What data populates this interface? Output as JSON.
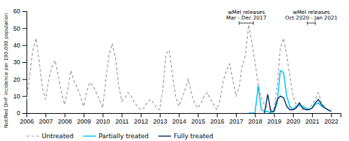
{
  "chart_data": {
    "type": "line",
    "ylabel": "Notified DHF incidence per 100,000 population",
    "xlim": [
      2006,
      2022.5
    ],
    "xticks": [
      2006,
      2007,
      2008,
      2009,
      2010,
      2011,
      2012,
      2013,
      2014,
      2015,
      2016,
      2017,
      2018,
      2019,
      2020,
      2021,
      2022
    ],
    "ylim": [
      0,
      60
    ],
    "yticks": [
      0,
      10,
      20,
      30,
      40,
      50,
      60
    ],
    "grid": false,
    "legend": "bottom",
    "annotations": [
      {
        "text": "wMel releases\nMar - Dec 2017",
        "x_start": 2017.17,
        "x_end": 2017.92,
        "y": 53,
        "y_text": 54.5
      },
      {
        "text": "wMel releases\nOct 2020 - Jan 2021",
        "x_start": 2020.75,
        "x_end": 2021.17,
        "y": 53,
        "y_text": 54.5
      }
    ],
    "series": [
      {
        "name": "Untreated",
        "color": "#999999",
        "line_style": "dashed",
        "x": [
          2006.0,
          2006.17,
          2006.33,
          2006.5,
          2006.67,
          2006.83,
          2007.0,
          2007.17,
          2007.33,
          2007.5,
          2007.67,
          2007.83,
          2008.0,
          2008.17,
          2008.33,
          2008.5,
          2008.67,
          2008.83,
          2009.0,
          2009.17,
          2009.33,
          2009.5,
          2009.67,
          2009.83,
          2010.0,
          2010.17,
          2010.33,
          2010.5,
          2010.67,
          2010.83,
          2011.0,
          2011.17,
          2011.33,
          2011.5,
          2011.67,
          2011.83,
          2012.0,
          2012.17,
          2012.33,
          2012.5,
          2012.67,
          2012.83,
          2013.0,
          2013.17,
          2013.33,
          2013.5,
          2013.67,
          2013.83,
          2014.0,
          2014.17,
          2014.33,
          2014.5,
          2014.67,
          2014.83,
          2015.0,
          2015.17,
          2015.33,
          2015.5,
          2015.67,
          2015.83,
          2016.0,
          2016.17,
          2016.33,
          2016.5,
          2016.67,
          2016.83,
          2017.0,
          2017.17,
          2017.33,
          2017.5,
          2017.67,
          2017.83,
          2018.0,
          2018.17,
          2018.33,
          2018.5,
          2018.67,
          2018.83,
          2019.0,
          2019.17,
          2019.33,
          2019.5,
          2019.67,
          2019.83,
          2020.0,
          2020.17,
          2020.33,
          2020.5,
          2020.67,
          2020.83,
          2021.0,
          2021.17,
          2021.33,
          2021.5,
          2021.67,
          2021.83,
          2022.0
        ],
        "values": [
          8,
          22,
          37,
          44,
          30,
          15,
          8,
          20,
          27,
          31,
          22,
          12,
          5,
          14,
          25,
          19,
          15,
          10,
          4,
          13,
          18,
          16,
          12,
          8,
          3,
          20,
          34,
          41,
          33,
          17,
          7,
          9,
          12,
          10,
          6,
          4,
          2,
          3,
          6,
          8,
          6,
          3,
          2,
          15,
          35,
          37,
          22,
          10,
          4,
          9,
          14,
          20,
          11,
          6,
          3,
          6,
          10,
          12,
          8,
          5,
          2,
          8,
          19,
          25,
          29,
          20,
          10,
          15,
          28,
          34,
          52,
          42,
          30,
          17,
          9,
          5,
          3,
          2,
          2,
          16,
          38,
          44,
          34,
          22,
          10,
          5,
          4,
          2,
          2,
          3,
          5,
          8,
          12,
          6,
          3,
          2,
          2
        ]
      },
      {
        "name": "Partially treated",
        "color": "#00BFFF",
        "line_style": "solid",
        "x": [
          2017.67,
          2017.83,
          2018.0,
          2018.17,
          2018.33,
          2018.5,
          2018.67,
          2018.83,
          2019.0,
          2019.17,
          2019.33,
          2019.5,
          2019.67,
          2019.83,
          2020.0,
          2020.17,
          2020.33,
          2020.5,
          2020.67,
          2020.83,
          2021.0,
          2021.17,
          2021.33,
          2021.5,
          2021.67,
          2021.83,
          2022.0
        ],
        "values": [
          0,
          0,
          0,
          16,
          2,
          1,
          1,
          0,
          1,
          6,
          25,
          24,
          10,
          4,
          2,
          4,
          5,
          4,
          3,
          2,
          3,
          5,
          6,
          4,
          3,
          2,
          1
        ]
      },
      {
        "name": "Fully treated",
        "color": "#003366",
        "line_style": "solid",
        "x": [
          2018.5,
          2018.67,
          2018.83,
          2019.0,
          2019.17,
          2019.33,
          2019.5,
          2019.67,
          2019.83,
          2020.0,
          2020.17,
          2020.33,
          2020.5,
          2020.67,
          2020.83,
          2021.0,
          2021.17,
          2021.33,
          2021.5,
          2021.67,
          2021.83,
          2022.0
        ],
        "values": [
          0,
          11,
          1,
          1,
          8,
          10,
          9,
          4,
          2,
          2,
          3,
          6,
          3,
          2,
          2,
          3,
          6,
          8,
          5,
          3,
          2,
          1
        ]
      }
    ]
  }
}
